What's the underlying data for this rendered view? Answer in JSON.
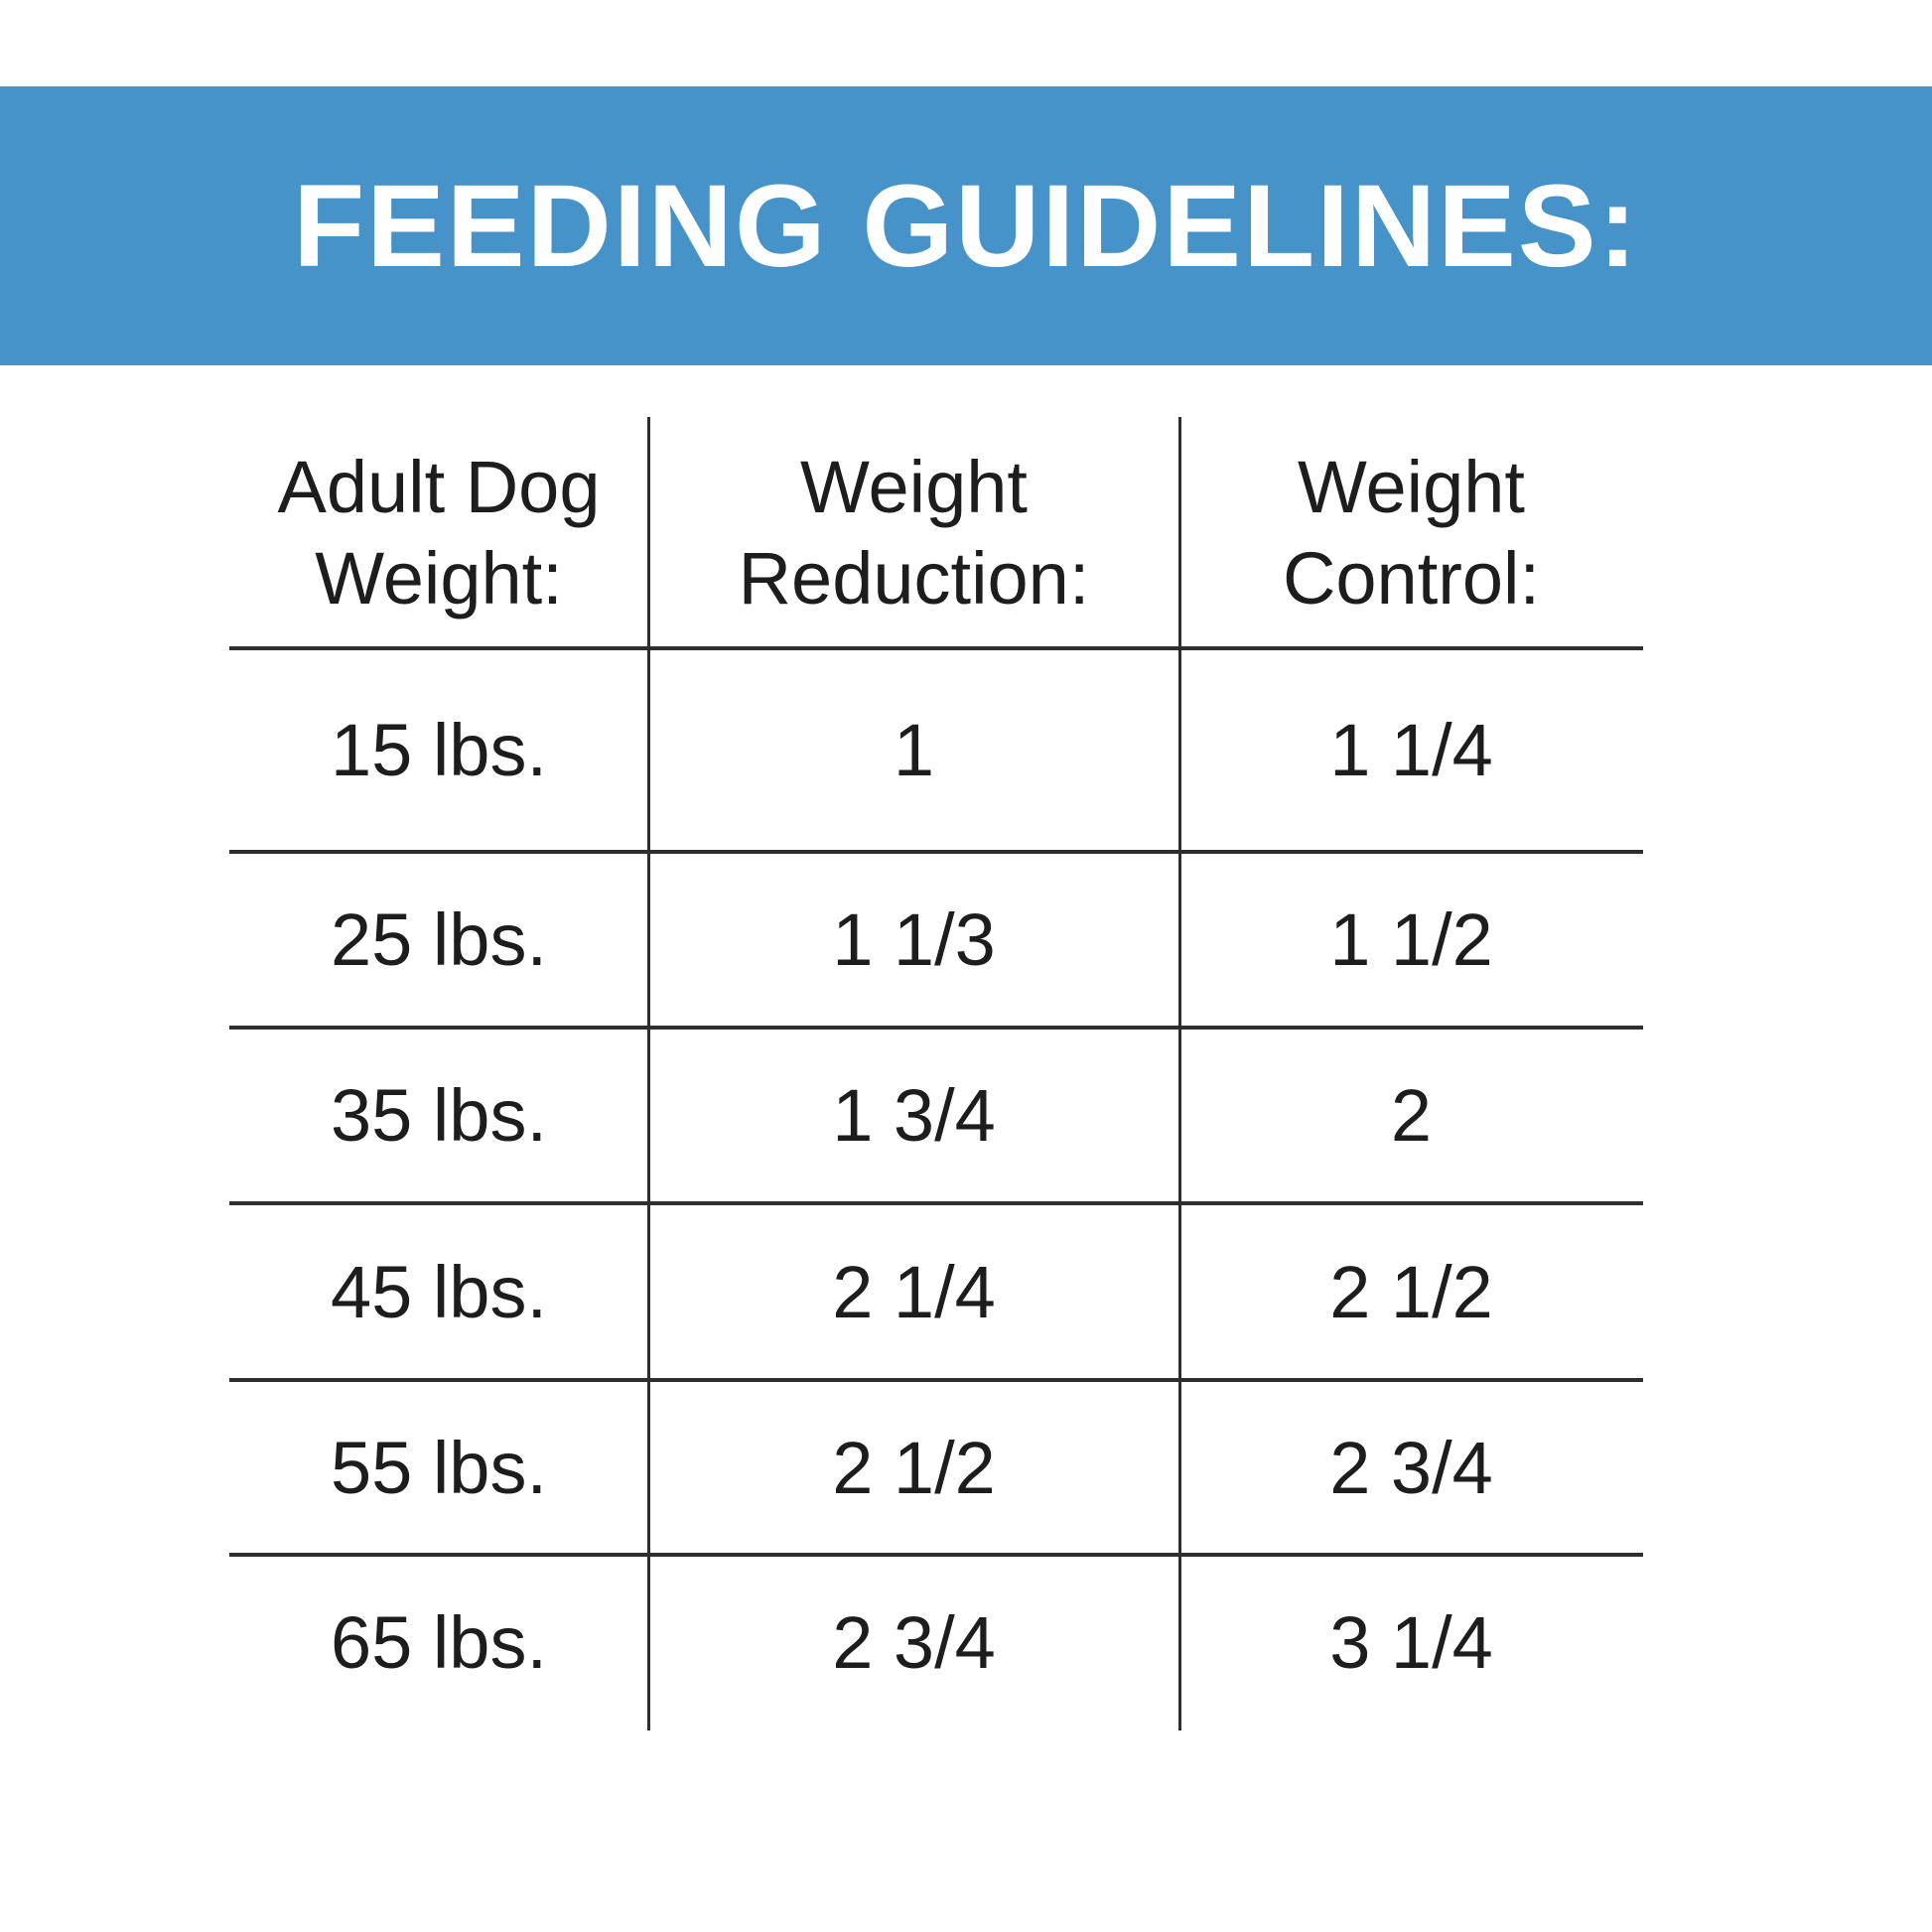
{
  "banner": {
    "title": "FEEDING GUIDELINES:",
    "background_color": "#4593c8",
    "text_color": "#ffffff"
  },
  "table": {
    "line_color": "#2e2e2e",
    "text_color": "#1d1d1d",
    "headers": [
      {
        "line1": "Adult Dog",
        "line2": "Weight:"
      },
      {
        "line1": "Weight",
        "line2": "Reduction:"
      },
      {
        "line1": "Weight",
        "line2": "Control:"
      }
    ],
    "rows": [
      {
        "weight": "15 lbs.",
        "reduction": "1",
        "control": "1 1/4"
      },
      {
        "weight": "25 lbs.",
        "reduction": "1 1/3",
        "control": "1 1/2"
      },
      {
        "weight": "35 lbs.",
        "reduction": "1 3/4",
        "control": "2"
      },
      {
        "weight": "45 lbs.",
        "reduction": "2 1/4",
        "control": "2 1/2"
      },
      {
        "weight": "55 lbs.",
        "reduction": "2 1/2",
        "control": "2 3/4"
      },
      {
        "weight": "65 lbs.",
        "reduction": "2 3/4",
        "control": "3 1/4"
      }
    ]
  }
}
